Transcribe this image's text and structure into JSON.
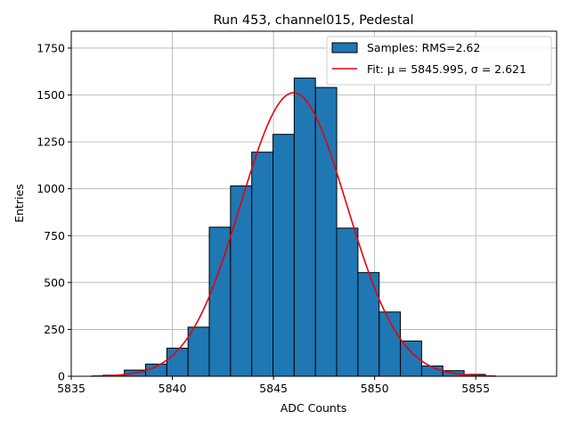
{
  "chart_data": {
    "type": "bar",
    "title": "Run 453, channel015, Pedestal",
    "xlabel": "ADC Counts",
    "ylabel": "Entries",
    "xlim": [
      5835,
      5859
    ],
    "ylim": [
      0,
      1840
    ],
    "xticks": [
      5835,
      5840,
      5845,
      5850,
      5855
    ],
    "yticks": [
      0,
      250,
      500,
      750,
      1000,
      1250,
      1500,
      1750
    ],
    "grid": true,
    "legend_position": "top-right",
    "colors": {
      "bars": "#1f77b4",
      "fit": "#e8000b",
      "grid": "#b0b0b0"
    },
    "histogram": {
      "name": "Samples: RMS=2.62",
      "bin_width": 1.05,
      "bins": [
        {
          "x": 5837.1,
          "value": 6
        },
        {
          "x": 5838.15,
          "value": 33
        },
        {
          "x": 5839.2,
          "value": 65
        },
        {
          "x": 5840.25,
          "value": 150
        },
        {
          "x": 5841.3,
          "value": 262
        },
        {
          "x": 5842.35,
          "value": 795
        },
        {
          "x": 5843.4,
          "value": 1015
        },
        {
          "x": 5844.45,
          "value": 1195
        },
        {
          "x": 5845.5,
          "value": 1290
        },
        {
          "x": 5846.55,
          "value": 1590
        },
        {
          "x": 5847.6,
          "value": 1540
        },
        {
          "x": 5848.65,
          "value": 790
        },
        {
          "x": 5849.7,
          "value": 553
        },
        {
          "x": 5850.75,
          "value": 343
        },
        {
          "x": 5851.8,
          "value": 188
        },
        {
          "x": 5852.85,
          "value": 55
        },
        {
          "x": 5853.9,
          "value": 30
        },
        {
          "x": 5854.95,
          "value": 10
        }
      ]
    },
    "fit": {
      "name": "Fit: μ = 5845.995, σ = 2.621",
      "mu": 5845.995,
      "sigma": 2.621,
      "amplitude": 1512,
      "x_range": [
        5836,
        5856
      ]
    }
  }
}
